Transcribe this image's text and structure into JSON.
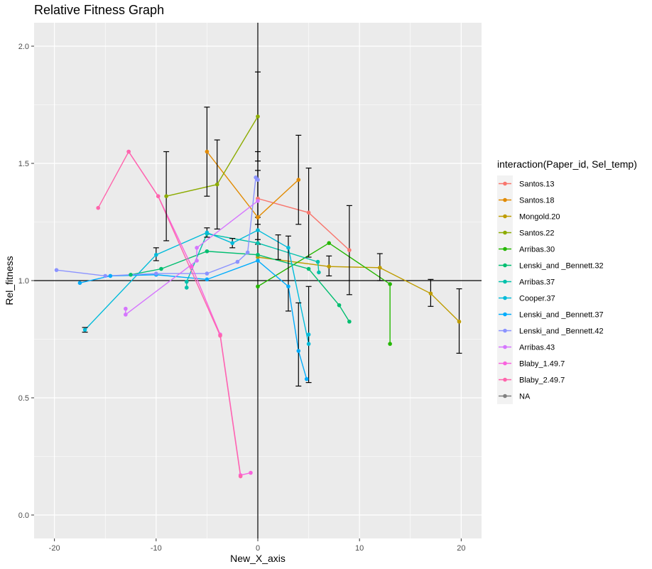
{
  "chart_data": {
    "type": "line",
    "title": "Relative Fitness Graph",
    "xlabel": "New_X_axis",
    "ylabel": "Rel_fitness",
    "xlim": [
      -22,
      22
    ],
    "ylim": [
      -0.1,
      2.1
    ],
    "xticks": [
      -20,
      -10,
      0,
      10,
      20
    ],
    "xtick_labels": [
      "-20",
      "-10",
      "0",
      "10",
      "20"
    ],
    "yticks": [
      0,
      0.5,
      1,
      1.5,
      2
    ],
    "ytick_labels": [
      "0.0",
      "0.5",
      "1.0",
      "1.5",
      "2.0"
    ],
    "reference_lines": {
      "x": 0,
      "y": 1.0
    },
    "grid": true,
    "legend": {
      "title": "interaction(Paper_id, Sel_temp)",
      "position": "right"
    },
    "series": [
      {
        "name": "Santos.13",
        "color": "#F8766D",
        "x": [
          0,
          5,
          9
        ],
        "y": [
          1.35,
          1.29,
          1.13
        ]
      },
      {
        "name": "Santos.18",
        "color": "#E18A00",
        "x": [
          -5,
          0,
          4
        ],
        "y": [
          1.55,
          1.27,
          1.43
        ]
      },
      {
        "name": "Mongold.20",
        "color": "#BE9C00",
        "x": [
          0,
          7,
          12,
          17,
          19.8
        ],
        "y": [
          1.1,
          1.06,
          1.055,
          0.945,
          0.825
        ]
      },
      {
        "name": "Santos.22",
        "color": "#8CAB00",
        "x": [
          -9,
          -4,
          0
        ],
        "y": [
          1.36,
          1.41,
          1.7
        ]
      },
      {
        "name": "Arribas.30",
        "color": "#24B700",
        "x": [
          0,
          7,
          13,
          13
        ],
        "y": [
          0.975,
          1.16,
          0.985,
          0.73
        ]
      },
      {
        "name": "Lenski_and _Bennett.32",
        "color": "#00BE70",
        "x": [
          -12.5,
          -9.5,
          -5,
          0,
          5,
          8,
          9
        ],
        "y": [
          1.025,
          1.05,
          1.125,
          1.11,
          1.05,
          0.895,
          0.825
        ]
      },
      {
        "name": "Arribas.37",
        "color": "#00C1AB",
        "x": [
          -7,
          -7,
          -5,
          0,
          5.9,
          6
        ],
        "y": [
          0.97,
          0.995,
          1.2,
          1.16,
          1.08,
          1.035
        ]
      },
      {
        "name": "Cooper.37",
        "color": "#00BBDA",
        "x": [
          -17,
          -10,
          -5,
          -2.5,
          0,
          3,
          5,
          5
        ],
        "y": [
          0.79,
          1.11,
          1.205,
          1.16,
          1.215,
          1.14,
          0.73,
          0.77
        ]
      },
      {
        "name": "Lenski_and _Bennett.37",
        "color": "#00ACFC",
        "x": [
          -17.5,
          -14.5,
          -10,
          -5,
          0,
          3,
          4,
          4.8
        ],
        "y": [
          0.99,
          1.02,
          1.025,
          1.005,
          1.085,
          0.975,
          0.7,
          0.58
        ]
      },
      {
        "name": "Lenski_and _Bennett.42",
        "color": "#8B93FF",
        "x": [
          -19.8,
          -15,
          -10,
          -5,
          -2,
          -1,
          -0.2,
          0
        ],
        "y": [
          1.045,
          1.02,
          1.03,
          1.03,
          1.08,
          1.12,
          1.44,
          1.43
        ]
      },
      {
        "name": "Arribas.43",
        "color": "#D575FE",
        "x": [
          -13,
          -13,
          -6,
          -6,
          0
        ],
        "y": [
          0.88,
          0.855,
          1.085,
          1.14,
          1.34
        ]
      },
      {
        "name": "Blaby_1.49.7",
        "color": "#F962DD",
        "x": [
          -12.7,
          -9.8,
          -6.5,
          -3.7,
          -1.7,
          -0.7
        ],
        "y": [
          1.55,
          1.36,
          1.06,
          0.77,
          0.17,
          0.18
        ]
      },
      {
        "name": "Blaby_2.49.7",
        "color": "#FF65AC",
        "x": [
          -15.7,
          -12.7,
          -9.8,
          -3.7,
          -1.7
        ],
        "y": [
          1.31,
          1.55,
          1.36,
          0.765,
          0.165
        ]
      },
      {
        "name": "NA",
        "color": "#7F7F7F",
        "x": [],
        "y": []
      }
    ],
    "error_bars": [
      {
        "x": -17,
        "low": 0.78,
        "high": 0.8
      },
      {
        "x": -10,
        "low": 1.085,
        "high": 1.14
      },
      {
        "x": -9,
        "low": 1.17,
        "high": 1.55
      },
      {
        "x": -5,
        "low": 1.36,
        "high": 1.74
      },
      {
        "x": -5,
        "low": 1.185,
        "high": 1.225
      },
      {
        "x": -4,
        "low": 1.22,
        "high": 1.6
      },
      {
        "x": -2.5,
        "low": 1.14,
        "high": 1.18
      },
      {
        "x": 0,
        "low": 1.51,
        "high": 1.89
      },
      {
        "x": 0,
        "low": 1.175,
        "high": 1.55
      },
      {
        "x": 0,
        "low": 1.24,
        "high": 1.47
      },
      {
        "x": 0,
        "low": 1.155,
        "high": 1.27
      },
      {
        "x": 2,
        "low": 1.09,
        "high": 1.195
      },
      {
        "x": 3,
        "low": 0.87,
        "high": 1.19
      },
      {
        "x": 4,
        "low": 1.24,
        "high": 1.62
      },
      {
        "x": 4,
        "low": 0.55,
        "high": 0.905
      },
      {
        "x": 5,
        "low": 1.1,
        "high": 1.48
      },
      {
        "x": 5,
        "low": 0.565,
        "high": 0.975
      },
      {
        "x": 7,
        "low": 1.02,
        "high": 1.105
      },
      {
        "x": 9,
        "low": 0.94,
        "high": 1.32
      },
      {
        "x": 12,
        "low": 1.0,
        "high": 1.115
      },
      {
        "x": 17,
        "low": 0.89,
        "high": 1.005
      },
      {
        "x": 19.8,
        "low": 0.69,
        "high": 0.965
      }
    ]
  }
}
